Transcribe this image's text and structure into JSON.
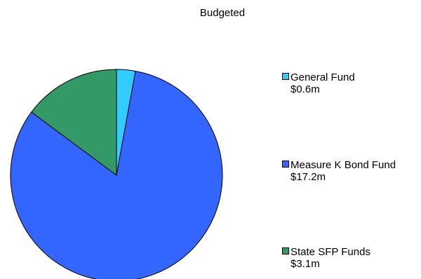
{
  "chart_data": {
    "type": "pie",
    "title": "Budgeted",
    "slices": [
      {
        "label": "General Fund",
        "value_label": "$0.6m",
        "value": 0.6,
        "color": "#33ccff"
      },
      {
        "label": "Measure K Bond Fund",
        "value_label": "$17.2m",
        "value": 17.2,
        "color": "#3366ff"
      },
      {
        "label": "State SFP Funds",
        "value_label": "$3.1m",
        "value": 3.1,
        "color": "#339966"
      }
    ],
    "start_angle": "12 o'clock",
    "direction": "clockwise",
    "legend": "right"
  }
}
